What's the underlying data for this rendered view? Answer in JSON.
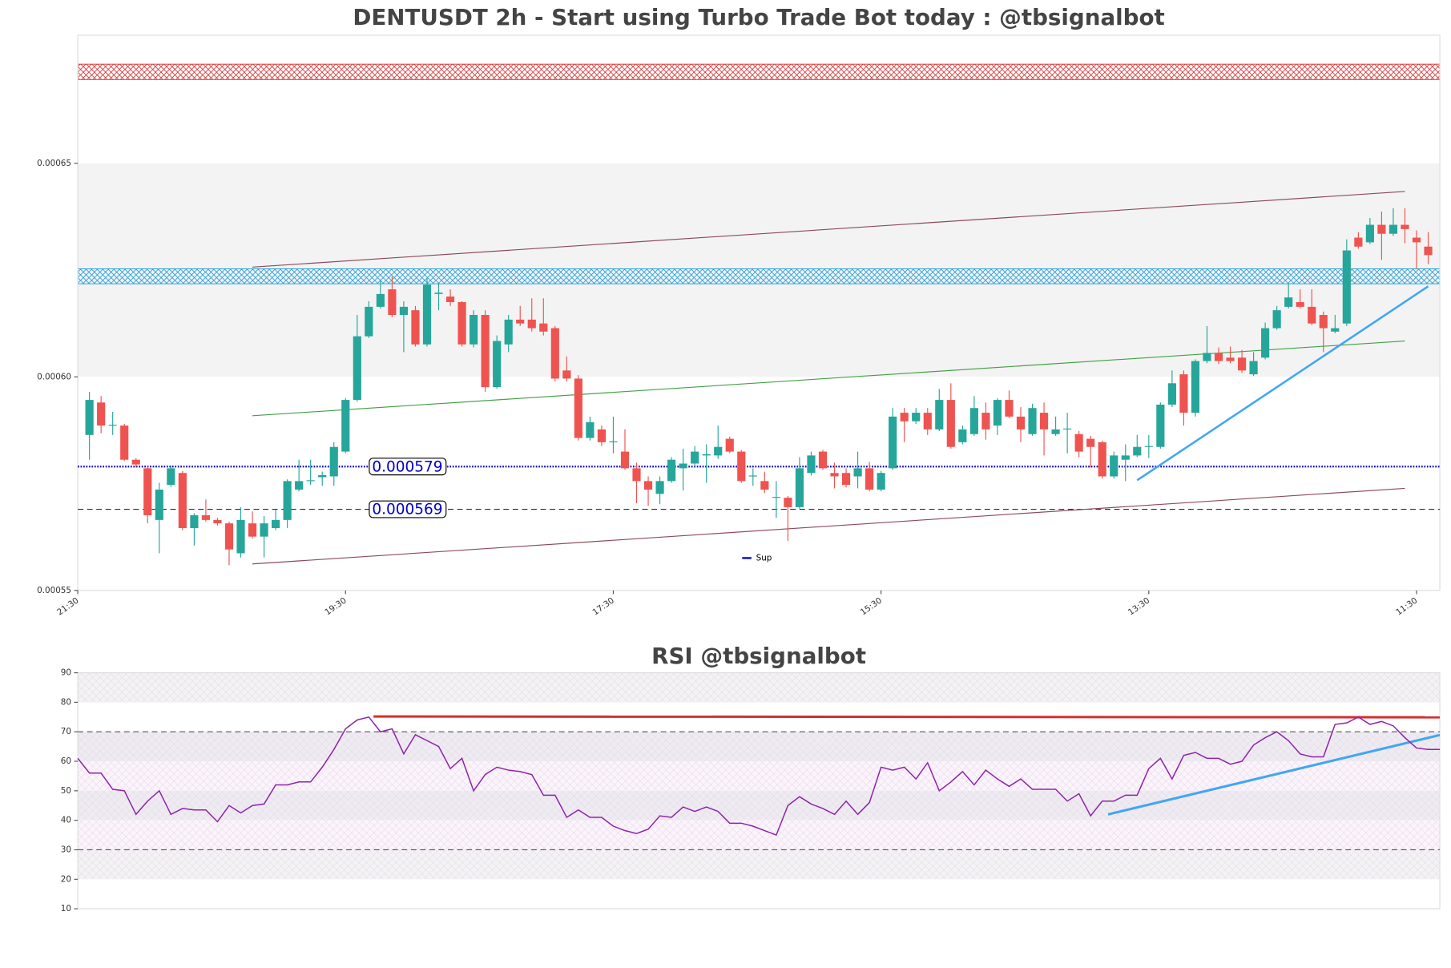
{
  "chart_data": [
    {
      "type": "candlestick",
      "title": "DENTUSDT 2h - Start using Turbo Trade Bot today : @tbsignalbot",
      "up_color": "#26a69a",
      "down_color": "#ef5350",
      "open": [
        0.0005864,
        0.000594,
        0.0005886,
        0.0005886,
        0.0005806,
        0.0005786,
        0.0005665,
        0.0005747,
        0.0005775,
        0.0005646,
        0.0005676,
        0.0005665,
        0.0005657,
        0.0005587,
        0.0005657,
        0.0005626,
        0.0005646,
        0.0005665,
        0.0005736,
        0.0005756,
        0.0005765,
        0.0005767,
        0.0005825,
        0.0005946,
        0.0006095,
        0.0006164,
        0.0006205,
        0.0006145,
        0.0006156,
        0.0006076,
        0.0006194,
        0.0006188,
        0.0006175,
        0.0006076,
        0.0006145,
        0.0005976,
        0.0006076,
        0.0006134,
        0.0006134,
        0.0006125,
        0.0006114,
        0.0006015,
        0.0005996,
        0.0005857,
        0.0005877,
        0.0005847,
        0.0005825,
        0.0005786,
        0.0005756,
        0.0005726,
        0.0005756,
        0.0005786,
        0.0005797,
        0.0005816,
        0.0005816,
        0.0005855,
        0.0005825,
        0.0005767,
        0.0005756,
        0.0005717,
        0.0005717,
        0.0005695,
        0.0005775,
        0.0005825,
        0.0005775,
        0.0005775,
        0.0005767,
        0.0005786,
        0.0005736,
        0.0005786,
        0.0005916,
        0.0005896,
        0.0005916,
        0.0005877,
        0.0005946,
        0.0005847,
        0.0005866,
        0.0005916,
        0.0005886,
        0.0005946,
        0.0005907,
        0.0005866,
        0.0005916,
        0.0005866,
        0.0005877,
        0.0005866,
        0.0005855,
        0.0005847,
        0.0005767,
        0.0005806,
        0.0005816,
        0.0005836,
        0.0005836,
        0.0005935,
        0.0006006,
        0.0005916,
        0.0006037,
        0.0006056,
        0.0006045,
        0.0006045,
        0.0006006,
        0.0006045,
        0.0006114,
        0.0006164,
        0.0006175,
        0.0006164,
        0.0006145,
        0.0006106,
        0.0006125,
        0.0006326,
        0.0006315,
        0.0006356,
        0.0006335,
        0.0006356,
        0.0006326,
        0.0006305
      ],
      "high": [
        0.0005965,
        0.0005955,
        0.0005918,
        0.000589,
        0.000581,
        0.000579,
        0.0005752,
        0.0005792,
        0.000578,
        0.0005681,
        0.0005713,
        0.000567,
        0.0005661,
        0.0005695,
        0.0005685,
        0.0005674,
        0.0005689,
        0.000576,
        0.0005806,
        0.0005806,
        0.0005778,
        0.0005847,
        0.000595,
        0.0006145,
        0.0006177,
        0.0006225,
        0.0006235,
        0.0006177,
        0.0006166,
        0.0006231,
        0.000622,
        0.0006205,
        0.0006177,
        0.0006156,
        0.0006156,
        0.0006097,
        0.0006145,
        0.0006166,
        0.0006184,
        0.0006184,
        0.0006119,
        0.0006048,
        0.0006004,
        0.0005907,
        0.0005886,
        0.0005907,
        0.0005877,
        0.0005799,
        0.0005767,
        0.0005767,
        0.0005812,
        0.0005832,
        0.0005838,
        0.0005842,
        0.0005886,
        0.000586,
        0.0005829,
        0.0005786,
        0.0005778,
        0.0005756,
        0.0005721,
        0.0005812,
        0.0005825,
        0.0005829,
        0.0005799,
        0.0005786,
        0.0005825,
        0.0005801,
        0.000578,
        0.0005927,
        0.0005927,
        0.0005927,
        0.0005927,
        0.0005972,
        0.0005985,
        0.0005886,
        0.0005955,
        0.000594,
        0.000595,
        0.0005968,
        0.0005929,
        0.0005937,
        0.000594,
        0.0005907,
        0.0005916,
        0.0005873,
        0.0005862,
        0.0005851,
        0.0005825,
        0.0005842,
        0.0005864,
        0.0005864,
        0.000594,
        0.0006015,
        0.0006015,
        0.0006041,
        0.0006119,
        0.0006069,
        0.0006071,
        0.0006063,
        0.0006058,
        0.0006127,
        0.0006166,
        0.0006218,
        0.0006205,
        0.0006205,
        0.0006153,
        0.0006145,
        0.0006322,
        0.0006339,
        0.0006372,
        0.0006387,
        0.0006395,
        0.0006395,
        0.0006343,
        0.0006339
      ],
      "low": [
        0.0005806,
        0.0005868,
        0.0005864,
        0.0005803,
        0.0005788,
        0.0005657,
        0.0005587,
        0.0005742,
        0.0005641,
        0.0005605,
        0.0005661,
        0.0005652,
        0.0005559,
        0.0005577,
        0.0005622,
        0.0005577,
        0.0005641,
        0.0005646,
        0.0005732,
        0.0005747,
        0.0005745,
        0.0005745,
        0.0005821,
        0.0005942,
        0.0006091,
        0.000616,
        0.000614,
        0.0006058,
        0.0006071,
        0.0006071,
        0.0006156,
        0.0006166,
        0.0006071,
        0.0006069,
        0.0005965,
        0.0005972,
        0.0006058,
        0.0006119,
        0.0006106,
        0.0006097,
        0.0005989,
        0.0005989,
        0.0005851,
        0.0005851,
        0.0005838,
        0.0005821,
        0.0005782,
        0.0005704,
        0.0005698,
        0.0005702,
        0.0005752,
        0.0005734,
        0.000579,
        0.0005752,
        0.0005808,
        0.0005821,
        0.0005752,
        0.0005745,
        0.0005728,
        0.000567,
        0.0005616,
        0.0005691,
        0.0005769,
        0.0005782,
        0.0005739,
        0.0005741,
        0.0005739,
        0.0005732,
        0.0005732,
        0.0005782,
        0.0005847,
        0.000589,
        0.0005864,
        0.0005873,
        0.0005832,
        0.0005842,
        0.0005862,
        0.0005853,
        0.0005864,
        0.0005903,
        0.0005847,
        0.0005862,
        0.0005816,
        0.0005862,
        0.0005821,
        0.0005812,
        0.0005788,
        0.0005762,
        0.0005762,
        0.0005756,
        0.0005812,
        0.000581,
        0.0005832,
        0.0005929,
        0.0005886,
        0.0005907,
        0.0006032,
        0.000603,
        0.0006032,
        0.0006009,
        0.0006002,
        0.0006041,
        0.000611,
        0.000616,
        0.000616,
        0.0006121,
        0.0006058,
        0.0006102,
        0.0006119,
        0.00063,
        0.0006311,
        0.0006274,
        0.000633,
        0.0006313,
        0.0006253,
        0.0006264
      ],
      "close": [
        0.0005946,
        0.0005886,
        0.0005888,
        0.0005806,
        0.0005795,
        0.0005676,
        0.0005736,
        0.0005786,
        0.0005646,
        0.0005676,
        0.0005665,
        0.0005657,
        0.0005596,
        0.0005665,
        0.0005626,
        0.0005657,
        0.0005665,
        0.0005756,
        0.0005756,
        0.0005758,
        0.000577,
        0.0005836,
        0.0005946,
        0.0006095,
        0.0006164,
        0.0006194,
        0.0006145,
        0.0006164,
        0.0006076,
        0.0006216,
        0.0006197,
        0.0006175,
        0.0006076,
        0.0006145,
        0.0005976,
        0.0006084,
        0.0006134,
        0.0006125,
        0.0006114,
        0.0006106,
        0.0005996,
        0.0005996,
        0.0005857,
        0.0005894,
        0.0005847,
        0.0005849,
        0.0005786,
        0.0005756,
        0.0005736,
        0.0005756,
        0.0005806,
        0.0005797,
        0.0005825,
        0.0005819,
        0.0005836,
        0.0005825,
        0.0005756,
        0.0005769,
        0.0005736,
        0.0005719,
        0.0005695,
        0.0005786,
        0.0005816,
        0.0005786,
        0.0005767,
        0.0005747,
        0.0005786,
        0.0005736,
        0.0005775,
        0.0005907,
        0.0005896,
        0.0005916,
        0.0005877,
        0.0005946,
        0.0005836,
        0.0005877,
        0.0005927,
        0.0005877,
        0.0005946,
        0.0005907,
        0.0005877,
        0.0005927,
        0.0005877,
        0.0005877,
        0.0005879,
        0.0005825,
        0.0005836,
        0.0005767,
        0.0005816,
        0.0005816,
        0.0005836,
        0.0005838,
        0.0005935,
        0.0005985,
        0.0005916,
        0.0006037,
        0.0006056,
        0.0006037,
        0.0006037,
        0.0006015,
        0.0006037,
        0.0006114,
        0.0006156,
        0.0006186,
        0.0006164,
        0.0006125,
        0.0006114,
        0.0006114,
        0.0006296,
        0.0006305,
        0.0006356,
        0.0006335,
        0.0006356,
        0.0006346,
        0.0006315,
        0.0006285
      ],
      "xlim": [
        -1,
        116
      ],
      "xticks": [
        {
          "value": -1,
          "label": "21:30"
        },
        {
          "value": 22,
          "label": "19:30"
        },
        {
          "value": 45,
          "label": "17:30"
        },
        {
          "value": 68,
          "label": "15:30"
        },
        {
          "value": 91,
          "label": "13:30"
        },
        {
          "value": 114,
          "label": "11:30"
        }
      ],
      "ylim": [
        0.00055,
        0.00068
      ],
      "yticks": [
        0.00055,
        {
          "value": 0.0006,
          "label": "0.00060"
        },
        0.00065
      ],
      "bands": [
        {
          "range": [
            0.0006,
            0.00065
          ],
          "color": "#f3f3f3"
        }
      ],
      "zones": [
        {
          "range": [
            0.0006696,
            0.0006732
          ],
          "color": "#d32f2f"
        },
        {
          "range": [
            0.0006218,
            0.0006253
          ],
          "color": "#1e9bd7"
        }
      ],
      "trend_lines": [
        {
          "x": [
            14,
            113
          ],
          "values": [
            0.0006257,
            0.0006434
          ],
          "color": "#8d4a5a"
        },
        {
          "x": [
            14,
            113
          ],
          "values": [
            0.0005909,
            0.0006084
          ],
          "color": "#43a047"
        },
        {
          "x": [
            14,
            113
          ],
          "values": [
            0.0005562,
            0.0005739
          ],
          "color": "#8d4a5a"
        },
        {
          "x": [
            90,
            115
          ],
          "values": [
            0.0005758,
            0.0006212
          ],
          "color": "#42a5f5",
          "width": 2.2
        }
      ],
      "hlines": [
        {
          "value": 0.000579,
          "color": "#0000cd",
          "style": "dotted",
          "name": "Sup"
        },
        {
          "value": 0.000569,
          "color": "#1a237e",
          "style": "dashed"
        }
      ],
      "legend": "lower center",
      "grid": false
    },
    {
      "type": "line",
      "title": "RSI @tbsignalbot",
      "color": "#8e24aa",
      "values": [
        61,
        56,
        56,
        50.5,
        50,
        42,
        46.5,
        50,
        42,
        44,
        43.5,
        43.5,
        39.5,
        45,
        42.5,
        45,
        45.5,
        52,
        52,
        53,
        53,
        58,
        64,
        71,
        74,
        75,
        70,
        71,
        62.5,
        69,
        67,
        65,
        57.5,
        61,
        50,
        55.5,
        58,
        57,
        56.5,
        55.5,
        48.5,
        48.5,
        41,
        43.5,
        41,
        41,
        38,
        36.5,
        35.5,
        37,
        41.5,
        41,
        44.5,
        43,
        44.5,
        43,
        39,
        39,
        38,
        36.5,
        35,
        45,
        48,
        45.5,
        44,
        42,
        46.5,
        42,
        46,
        58,
        57,
        58,
        54,
        59.5,
        50,
        53,
        56.5,
        52,
        57,
        54,
        51.5,
        54,
        50.5,
        50.5,
        50.5,
        46.5,
        49,
        41.5,
        46.5,
        46.5,
        48.5,
        48.5,
        57.5,
        61,
        54,
        62,
        63,
        61,
        61,
        59,
        60,
        65.5,
        68,
        70,
        67,
        62.5,
        61.5,
        61.5,
        72.5,
        73,
        75,
        72.5,
        73.5,
        72,
        68,
        64.5,
        64,
        64
      ],
      "ylim": [
        10,
        90
      ],
      "yticks": [
        10,
        20,
        30,
        40,
        50,
        60,
        70,
        80,
        90
      ],
      "bands": [
        {
          "range": [
            80,
            90
          ],
          "color": "#f3f3f3"
        },
        {
          "range": [
            60,
            70
          ],
          "color": "#eeecf1"
        },
        {
          "range": [
            50,
            60
          ],
          "color": "#fbf4fb"
        },
        {
          "range": [
            40,
            50
          ],
          "color": "#eeecf1"
        },
        {
          "range": [
            30,
            40
          ],
          "color": "#fbf4fb"
        },
        {
          "range": [
            20,
            30
          ],
          "color": "#f3f3f3"
        }
      ],
      "trend_lines": [
        {
          "x": [
            25.4,
            117
          ],
          "values": [
            75.2,
            74.9
          ],
          "color": "#d32f2f",
          "width": 2.6
        },
        {
          "x": [
            88.5,
            117
          ],
          "values": [
            42,
            68.9
          ],
          "color": "#42a5f5",
          "width": 2.6
        }
      ],
      "hlines": [
        {
          "value": 70,
          "color": "#555555",
          "style": "dashed"
        },
        {
          "value": 30,
          "color": "#555555",
          "style": "dashed"
        }
      ],
      "grid": false
    }
  ]
}
